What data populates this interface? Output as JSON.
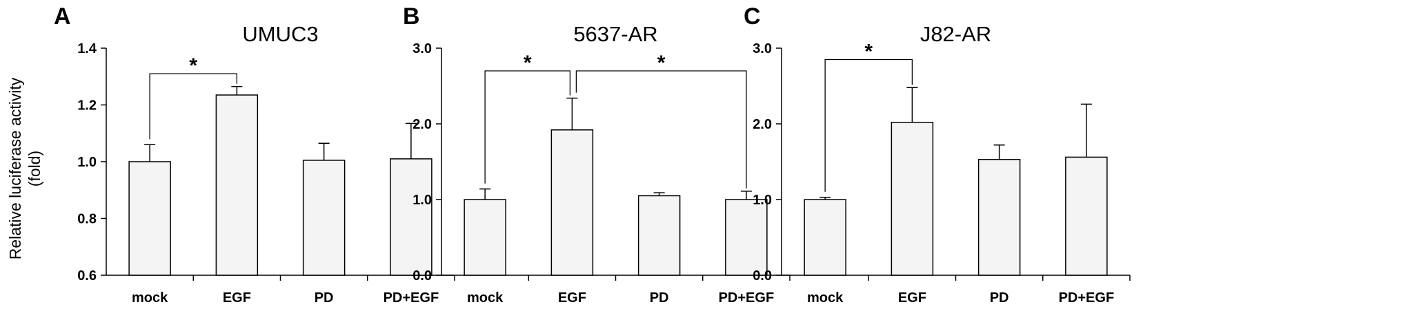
{
  "figure": {
    "ylabel_lines": [
      "Relative luciferase activity",
      "(fold)"
    ]
  },
  "chart_data": [
    {
      "type": "bar",
      "panel": "A",
      "title": "UMUC3",
      "categories": [
        "mock",
        "EGF",
        "PD",
        "PD+EGF"
      ],
      "values": [
        1.0,
        1.235,
        1.005,
        1.01
      ],
      "errors": [
        0.06,
        0.03,
        0.06,
        0.125
      ],
      "ylim": [
        0.6,
        1.4
      ],
      "yticks": [
        0.6,
        0.8,
        1.0,
        1.2,
        1.4
      ],
      "ytick_labels": [
        "0.6",
        "0.8",
        "1.0",
        "1.2",
        "1.4"
      ],
      "ylabel": "Relative luciferase activity (fold)",
      "bar_color": "#f4f4f4",
      "grid": false,
      "significance": [
        {
          "from": 0,
          "to": 1,
          "label": "*",
          "level": 1.31
        }
      ]
    },
    {
      "type": "bar",
      "panel": "B",
      "title": "5637-AR",
      "categories": [
        "mock",
        "EGF",
        "PD",
        "PD+EGF"
      ],
      "values": [
        1.0,
        1.92,
        1.05,
        1.0
      ],
      "errors": [
        0.14,
        0.42,
        0.04,
        0.11
      ],
      "ylim": [
        0.0,
        3.0
      ],
      "yticks": [
        0.0,
        1.0,
        2.0,
        3.0
      ],
      "ytick_labels": [
        "0.0",
        "1.0",
        "2.0",
        "3.0"
      ],
      "ylabel": "",
      "bar_color": "#f4f4f4",
      "grid": false,
      "significance": [
        {
          "from": 0,
          "to": 1,
          "label": "*",
          "level": 2.7
        },
        {
          "from": 1,
          "to": 3,
          "label": "*",
          "level": 2.7
        }
      ]
    },
    {
      "type": "bar",
      "panel": "C",
      "title": "J82-AR",
      "categories": [
        "mock",
        "EGF",
        "PD",
        "PD+EGF"
      ],
      "values": [
        1.0,
        2.02,
        1.53,
        1.56
      ],
      "errors": [
        0.03,
        0.46,
        0.19,
        0.7
      ],
      "ylim": [
        0.0,
        3.0
      ],
      "yticks": [
        0.0,
        1.0,
        2.0,
        3.0
      ],
      "ytick_labels": [
        "0.0",
        "1.0",
        "2.0",
        "3.0"
      ],
      "ylabel": "",
      "bar_color": "#f4f4f4",
      "grid": false,
      "significance": [
        {
          "from": 0,
          "to": 1,
          "label": "*",
          "level": 2.85
        }
      ]
    }
  ]
}
